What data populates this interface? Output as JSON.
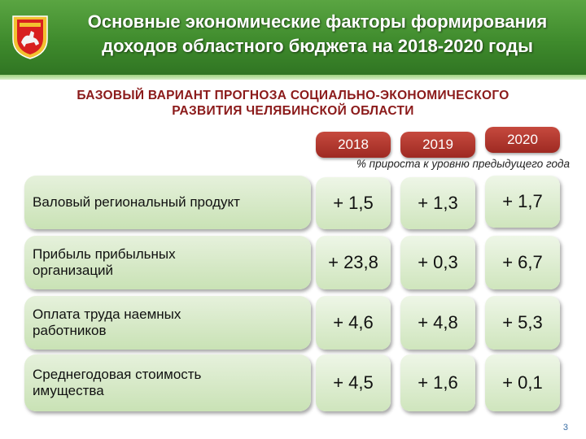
{
  "header": {
    "title_line1": "Основные экономические факторы формирования",
    "title_line2": "доходов областного бюджета на 2018-2020 годы"
  },
  "subtitle": {
    "line1": "БАЗОВЫЙ ВАРИАНТ ПРОГНОЗА СОЦИАЛЬНО-ЭКОНОМИЧЕСКОГО",
    "line2": "РАЗВИТИЯ ЧЕЛЯБИНСКОЙ ОБЛАСТИ"
  },
  "years": [
    "2018",
    "2019",
    "2020"
  ],
  "note": "% прироста к уровню предыдущего года",
  "rows": [
    {
      "label": "Валовый региональный продукт",
      "values": [
        "+ 1,5",
        "+ 1,3",
        "+ 1,7"
      ]
    },
    {
      "label": "Прибыль прибыльных организаций",
      "values": [
        "+ 23,8",
        "+ 0,3",
        "+ 6,7"
      ]
    },
    {
      "label": "Оплата труда наемных работников",
      "values": [
        "+ 4,6",
        "+ 4,8",
        "+ 5,3"
      ]
    },
    {
      "label": "Среднегодовая стоимость имущества",
      "values": [
        "+ 4,5",
        "+ 1,6",
        "+ 0,1"
      ]
    }
  ],
  "page_number": "3",
  "colors": {
    "header_green": "#3e8a2c",
    "subtitle_red": "#8b1a1a",
    "year_badge": "#b23a30",
    "cell_green": "#cfe5bd"
  },
  "icons": {
    "logo": "chelyabinsk-coat-of-arms"
  }
}
